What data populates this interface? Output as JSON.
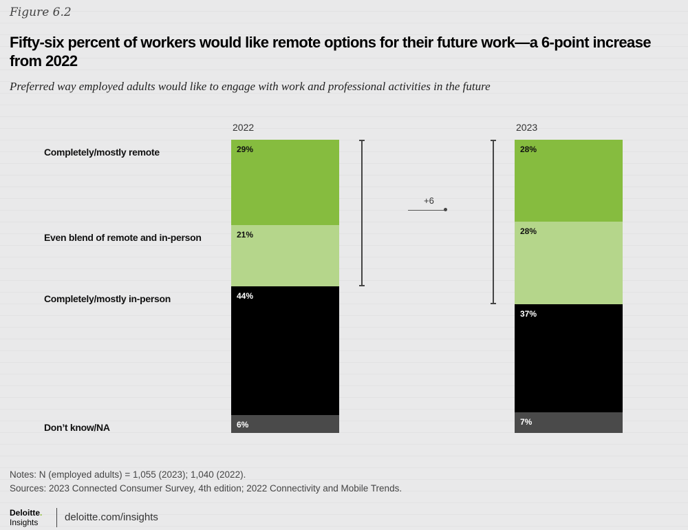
{
  "figure_label": "Figure 6.2",
  "chart_data": {
    "type": "bar",
    "stacked": true,
    "title": "Fifty-six percent of workers would like remote options for their future work—a 6-point increase from 2022",
    "subtitle": "Preferred way employed adults would like to engage with work and professional activities in the future",
    "categories": [
      "2022",
      "2023"
    ],
    "series": [
      {
        "name": "Completely/mostly remote",
        "values": [
          29,
          28
        ],
        "labels": [
          "29%",
          "28%"
        ],
        "color": "#86bc3f",
        "text_color": "#111"
      },
      {
        "name": "Even blend of remote and in-person",
        "values": [
          21,
          28
        ],
        "labels": [
          "21%",
          "28%"
        ],
        "color": "#b5d68b",
        "text_color": "#111"
      },
      {
        "name": "Completely/mostly in-person",
        "values": [
          44,
          37
        ],
        "labels": [
          "44%",
          "37%"
        ],
        "color": "#000000",
        "text_color": "#fff"
      },
      {
        "name": "Don’t know/NA",
        "values": [
          6,
          7
        ],
        "labels": [
          "6%",
          "7%"
        ],
        "color": "#4a4a4a",
        "text_color": "#fff"
      }
    ],
    "annotation": {
      "text": "+6",
      "from": "2022",
      "to": "2023",
      "remote_totals": [
        50,
        56
      ]
    },
    "ylim": [
      0,
      100
    ]
  },
  "notes": "Notes: N (employed adults) = 1,055 (2023); 1,040 (2022).",
  "sources": "Sources: 2023 Connected Consumer Survey, 4th edition; 2022 Connectivity and Mobile Trends.",
  "logo": {
    "line1": "Deloitte",
    "line2": "Insights"
  },
  "url": "deloitte.com/insights"
}
